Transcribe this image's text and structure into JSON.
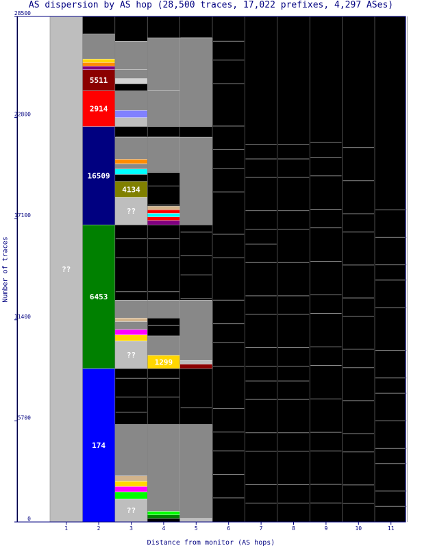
{
  "title": "AS dispersion by AS hop (28,500 traces, 17,022 prefixes, 4,297 ASes)",
  "chart_data": {
    "type": "bar",
    "title": "AS dispersion by AS hop (28,500 traces, 17,022 prefixes, 4,297 ASes)",
    "xlabel": "Distance from monitor (AS hops)",
    "ylabel": "Number of traces",
    "categories": [
      "1",
      "2",
      "3",
      "4",
      "5",
      "6",
      "7",
      "8",
      "9",
      "10",
      "11"
    ],
    "yticks": [
      0,
      5700,
      11400,
      17100,
      22800,
      28500
    ],
    "ylim": [
      0,
      28500
    ],
    "totals": [
      28500,
      27500,
      21700,
      21700,
      27300,
      27100,
      21300,
      21300,
      21400,
      21100,
      17600
    ],
    "colors": {
      "background": "#000000",
      "unknown": "#bebebe",
      "many_small": "#888888",
      "axis": "#000080"
    },
    "segments": [
      {
        "hop": 1,
        "label": "??",
        "from": 0,
        "to": 28500,
        "color": "#bebebe"
      },
      {
        "hop": 2,
        "label": "174",
        "from": 0,
        "to": 8650,
        "color": "#0000ff"
      },
      {
        "hop": 2,
        "label": "6453",
        "from": 8650,
        "to": 16750,
        "color": "#008000"
      },
      {
        "hop": 2,
        "label": "16509",
        "from": 16750,
        "to": 22300,
        "color": "#000080"
      },
      {
        "hop": 2,
        "label": "2914",
        "from": 22300,
        "to": 24300,
        "color": "#ff0000"
      },
      {
        "hop": 2,
        "label": "5511",
        "from": 24300,
        "to": 25500,
        "color": "#8b0000"
      },
      {
        "hop": 2,
        "label": "",
        "from": 25500,
        "to": 25700,
        "color": "#800080"
      },
      {
        "hop": 2,
        "label": "",
        "from": 25700,
        "to": 25900,
        "color": "#ff8c00"
      },
      {
        "hop": 2,
        "label": "",
        "from": 25900,
        "to": 26100,
        "color": "#ffd700"
      },
      {
        "hop": 2,
        "label": "",
        "from": 26100,
        "to": 27500,
        "color": "#888888"
      },
      {
        "hop": 3,
        "label": "??",
        "from": 0,
        "to": 1300,
        "color": "#bebebe"
      },
      {
        "hop": 3,
        "label": "",
        "from": 1300,
        "to": 1700,
        "color": "#00ff00"
      },
      {
        "hop": 3,
        "label": "",
        "from": 1700,
        "to": 2000,
        "color": "#ff00ff"
      },
      {
        "hop": 3,
        "label": "",
        "from": 2000,
        "to": 2300,
        "color": "#ffd700"
      },
      {
        "hop": 3,
        "label": "",
        "from": 2300,
        "to": 2600,
        "color": "#d2b48c"
      },
      {
        "hop": 3,
        "label": "",
        "from": 2600,
        "to": 5500,
        "color": "#888888"
      },
      {
        "hop": 3,
        "label": "??",
        "from": 8650,
        "to": 10200,
        "color": "#bebebe"
      },
      {
        "hop": 3,
        "label": "",
        "from": 10200,
        "to": 10550,
        "color": "#ffd700"
      },
      {
        "hop": 3,
        "label": "",
        "from": 10550,
        "to": 10850,
        "color": "#ff00ff"
      },
      {
        "hop": 3,
        "label": "",
        "from": 10850,
        "to": 11300,
        "color": "#888888"
      },
      {
        "hop": 3,
        "label": "",
        "from": 11300,
        "to": 11500,
        "color": "#d2b48c"
      },
      {
        "hop": 3,
        "label": "",
        "from": 11500,
        "to": 12500,
        "color": "#888888"
      },
      {
        "hop": 3,
        "label": "??",
        "from": 16750,
        "to": 18300,
        "color": "#bebebe"
      },
      {
        "hop": 3,
        "label": "4134",
        "from": 18300,
        "to": 19200,
        "color": "#808000"
      },
      {
        "hop": 3,
        "label": "",
        "from": 19200,
        "to": 19600,
        "color": "#000000"
      },
      {
        "hop": 3,
        "label": "",
        "from": 19600,
        "to": 19900,
        "color": "#00ffff"
      },
      {
        "hop": 3,
        "label": "",
        "from": 19900,
        "to": 20200,
        "color": "#888888"
      },
      {
        "hop": 3,
        "label": "",
        "from": 20200,
        "to": 20450,
        "color": "#ff8c00"
      },
      {
        "hop": 3,
        "label": "",
        "from": 20450,
        "to": 21700,
        "color": "#888888"
      },
      {
        "hop": 3,
        "label": "",
        "from": 22300,
        "to": 22800,
        "color": "#bebebe"
      },
      {
        "hop": 3,
        "label": "",
        "from": 22800,
        "to": 23200,
        "color": "#8080ff"
      },
      {
        "hop": 3,
        "label": "",
        "from": 23200,
        "to": 24300,
        "color": "#888888"
      },
      {
        "hop": 3,
        "label": "",
        "from": 24700,
        "to": 25000,
        "color": "#d3d3d3"
      },
      {
        "hop": 3,
        "label": "",
        "from": 25000,
        "to": 25500,
        "color": "#888888"
      },
      {
        "hop": 3,
        "label": "",
        "from": 25500,
        "to": 27100,
        "color": "#888888"
      },
      {
        "hop": 4,
        "label": "",
        "from": 200,
        "to": 400,
        "color": "#008000"
      },
      {
        "hop": 4,
        "label": "",
        "from": 400,
        "to": 600,
        "color": "#00ff00"
      },
      {
        "hop": 4,
        "label": "",
        "from": 600,
        "to": 5500,
        "color": "#888888"
      },
      {
        "hop": 4,
        "label": "1299",
        "from": 8650,
        "to": 9400,
        "color": "#ffd700"
      },
      {
        "hop": 4,
        "label": "",
        "from": 9400,
        "to": 10500,
        "color": "#888888"
      },
      {
        "hop": 4,
        "label": "",
        "from": 11500,
        "to": 12500,
        "color": "#888888"
      },
      {
        "hop": 4,
        "label": "",
        "from": 16750,
        "to": 17000,
        "color": "#800080"
      },
      {
        "hop": 4,
        "label": "",
        "from": 17000,
        "to": 17200,
        "color": "#ff0000"
      },
      {
        "hop": 4,
        "label": "",
        "from": 17200,
        "to": 17400,
        "color": "#00ffff"
      },
      {
        "hop": 4,
        "label": "",
        "from": 17400,
        "to": 17600,
        "color": "#ff0000"
      },
      {
        "hop": 4,
        "label": "",
        "from": 17600,
        "to": 17800,
        "color": "#d2b48c"
      },
      {
        "hop": 4,
        "label": "",
        "from": 19700,
        "to": 21700,
        "color": "#888888"
      },
      {
        "hop": 4,
        "label": "",
        "from": 22300,
        "to": 24300,
        "color": "#888888"
      },
      {
        "hop": 4,
        "label": "",
        "from": 24300,
        "to": 27300,
        "color": "#888888"
      },
      {
        "hop": 5,
        "label": "",
        "from": 0,
        "to": 200,
        "color": "#bebebe"
      },
      {
        "hop": 5,
        "label": "",
        "from": 200,
        "to": 5500,
        "color": "#888888"
      },
      {
        "hop": 5,
        "label": "",
        "from": 8650,
        "to": 8900,
        "color": "#8b0000"
      },
      {
        "hop": 5,
        "label": "",
        "from": 8900,
        "to": 9100,
        "color": "#bebebe"
      },
      {
        "hop": 5,
        "label": "",
        "from": 9100,
        "to": 12500,
        "color": "#888888"
      },
      {
        "hop": 5,
        "label": "",
        "from": 16750,
        "to": 21700,
        "color": "#888888"
      },
      {
        "hop": 5,
        "label": "",
        "from": 22300,
        "to": 27300,
        "color": "#888888"
      }
    ]
  }
}
